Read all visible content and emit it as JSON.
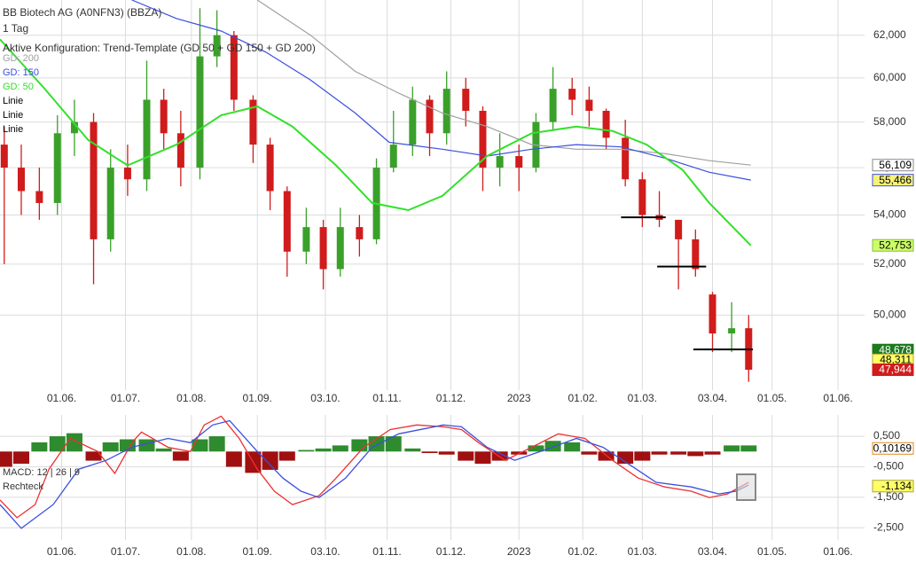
{
  "chart_data": [
    {
      "type": "candlestick",
      "title": "BB Biotech AG (A0NFN3) (BBZA)",
      "subtitle": "1 Tag",
      "annotation": "Aktive Konfiguration: Trend-Template (GD 50 + GD 150 + GD 200)",
      "up_color": "#3aa02a",
      "down_color": "#d01c1c",
      "x": [
        -27,
        -19,
        -10.5,
        -2,
        6,
        15,
        23,
        31,
        40,
        48,
        56,
        65,
        73,
        81,
        90,
        98,
        106,
        115,
        123,
        131,
        140,
        148,
        156,
        165,
        173,
        181,
        190,
        198,
        206,
        215,
        223,
        231,
        240,
        248,
        256,
        265,
        273,
        281,
        290,
        298,
        306,
        315,
        323
      ],
      "open": [
        57,
        56,
        55,
        54.5,
        57.5,
        58,
        53,
        56,
        55.5,
        59,
        57.5,
        56,
        61,
        62,
        59,
        57,
        55,
        52.5,
        53.5,
        51.8,
        53.5,
        53,
        56,
        57,
        59,
        57.5,
        59.5,
        58.5,
        56,
        56.5,
        56,
        58,
        59.5,
        59,
        58.5,
        57.3,
        55.5,
        54,
        53.8,
        53,
        50.8,
        49.3,
        49.5
      ],
      "high": [
        57.8,
        57,
        56,
        58.3,
        59,
        58.4,
        56.8,
        57,
        60.8,
        59.5,
        58.5,
        63.3,
        63.2,
        62.2,
        59.2,
        57.3,
        55.2,
        54.3,
        53.8,
        54.3,
        54,
        56.4,
        58.5,
        59.6,
        59.2,
        60.3,
        60,
        58.7,
        57.5,
        57,
        58.4,
        60.5,
        60,
        59.6,
        58.6,
        58.1,
        55.8,
        55,
        53.8,
        53.4,
        50.9,
        50.5,
        50
      ],
      "low": [
        52,
        54,
        53.8,
        54,
        56.5,
        51.2,
        52.5,
        54.8,
        55,
        56.8,
        55.2,
        55.5,
        60.5,
        58.5,
        56.2,
        54.2,
        51.5,
        52,
        51,
        51.5,
        52.3,
        52.8,
        55.8,
        56.5,
        56.5,
        57,
        57.8,
        55,
        55.2,
        55,
        55.8,
        57.6,
        58.3,
        57.8,
        56.8,
        55.2,
        53.5,
        53.5,
        51,
        51.5,
        48.6,
        48.6,
        47.5
      ],
      "close": [
        56,
        55,
        54.5,
        57.5,
        58,
        53,
        56,
        55.5,
        59,
        57.5,
        56,
        61,
        62,
        59,
        57,
        55,
        52.5,
        53.5,
        51.8,
        53.5,
        53,
        56,
        57,
        59,
        57.5,
        59.5,
        58.5,
        56,
        56.5,
        56,
        58,
        59.5,
        59,
        58.5,
        57.3,
        55.5,
        54,
        53.8,
        53,
        51.8,
        49.3,
        49.5,
        47.944
      ],
      "overlays": [
        {
          "name": "GD: 200",
          "color": "#a0a0a0",
          "x": [
            92,
            117,
            138,
            158.5,
            179,
            200,
            221,
            242,
            263,
            284,
            304.5,
            324
          ],
          "values": [
            63.7,
            62,
            60.3,
            59.3,
            58.4,
            57.8,
            57,
            56.8,
            56.8,
            56.6,
            56.3,
            56.109
          ]
        },
        {
          "name": "GD: 150",
          "color": "#3a4fe0",
          "x": [
            33,
            54,
            75,
            96,
            117,
            138,
            154,
            179,
            200,
            221,
            242,
            263,
            284,
            304.5,
            324
          ],
          "values": [
            63.7,
            62.8,
            62.2,
            61.2,
            59.9,
            58.4,
            57.1,
            56.8,
            56.5,
            56.8,
            57,
            56.9,
            56.4,
            55.8,
            55.466
          ]
        },
        {
          "name": "GD: 50",
          "color": "#33e02a",
          "x": [
            -29,
            -8,
            12.5,
            31,
            54,
            75,
            92,
            108.5,
            129,
            146,
            163,
            179,
            200,
            221,
            242,
            259,
            275,
            292,
            304.5,
            324
          ],
          "values": [
            61.8,
            59.5,
            57.2,
            56.1,
            57,
            58.3,
            58.7,
            57.8,
            56.1,
            54.5,
            54.2,
            54.8,
            56.5,
            57.5,
            57.8,
            57.6,
            57,
            55.9,
            54.5,
            52.753
          ]
        }
      ],
      "lines": [
        {
          "name": "Linie",
          "color": "#000000",
          "x": [
            263,
            284
          ],
          "value": 53.9
        },
        {
          "name": "Linie",
          "color": "#000000",
          "x": [
            280,
            303
          ],
          "value": 51.9
        },
        {
          "name": "Linie",
          "color": "#000000",
          "x": [
            297,
            325
          ],
          "value": 48.7
        }
      ],
      "price_labels": [
        {
          "value": 56.109,
          "label": "56,109",
          "color": "#ffffff",
          "text_color": "#000000",
          "border": "#888888"
        },
        {
          "value": 55.466,
          "label": "55,466",
          "color": "#f6f27a",
          "text_color": "#000000",
          "border": "#3a4fe0"
        },
        {
          "value": 52.753,
          "label": "52,753",
          "color": "#ccff66",
          "text_color": "#000000",
          "border": "#88bb44"
        },
        {
          "value": 48.678,
          "label": "48,678",
          "color": "#1d7a1d",
          "text_color": "#ffffff",
          "border": "#1d7a1d"
        },
        {
          "value": 48.311,
          "label": "48,311",
          "color": "#ffff66",
          "text_color": "#000000",
          "border": "#aaaa33"
        },
        {
          "value": 47.944,
          "label": "47,944",
          "color": "#d01c1c",
          "text_color": "#ffffff",
          "border": "#d01c1c"
        }
      ],
      "log": true,
      "grid": true,
      "xlim": [
        -29,
        377.5
      ],
      "ylim": [
        47.2,
        63.7
      ],
      "xticks": [
        {
          "value": 0,
          "label": "01.06."
        },
        {
          "value": 30,
          "label": "01.07."
        },
        {
          "value": 61,
          "label": "01.08."
        },
        {
          "value": 92,
          "label": "01.09."
        },
        {
          "value": 124,
          "label": "03.10."
        },
        {
          "value": 153,
          "label": "01.11."
        },
        {
          "value": 183,
          "label": "01.12."
        },
        {
          "value": 215,
          "label": "2023"
        },
        {
          "value": 245,
          "label": "01.02."
        },
        {
          "value": 273,
          "label": "01.03."
        },
        {
          "value": 306,
          "label": "03.04."
        },
        {
          "value": 334,
          "label": "01.05."
        },
        {
          "value": 365,
          "label": "01.06."
        }
      ],
      "yticks": [
        {
          "value": 50,
          "label": "50,000"
        },
        {
          "value": 52,
          "label": "52,000"
        },
        {
          "value": 54,
          "label": "54,000"
        },
        {
          "value": 56,
          "label": "56,000"
        },
        {
          "value": 58,
          "label": "58,000"
        },
        {
          "value": 60,
          "label": "60,000"
        },
        {
          "value": 62,
          "label": "62,000"
        }
      ]
    },
    {
      "type": "macd",
      "title": "MACD: 12 | 26 | 9",
      "annotation": "Rechteck",
      "x": [
        -27,
        -19,
        -10.5,
        -2,
        6,
        15,
        23,
        31,
        40,
        48,
        56,
        65,
        73,
        81,
        90,
        98,
        106,
        115,
        123,
        131,
        140,
        148,
        156,
        165,
        173,
        181,
        190,
        198,
        206,
        215,
        223,
        231,
        240,
        248,
        256,
        265,
        273,
        281,
        290,
        298,
        306,
        315,
        323
      ],
      "histogram": [
        -0.5,
        -0.4,
        0.3,
        0.5,
        0.6,
        -0.3,
        0.3,
        0.4,
        0.4,
        0.1,
        -0.3,
        0.4,
        0.5,
        -0.5,
        -0.7,
        -0.6,
        -0.3,
        0.05,
        0.1,
        0.2,
        0.4,
        0.5,
        0.5,
        0.1,
        -0.05,
        -0.1,
        -0.3,
        -0.4,
        -0.3,
        -0.1,
        0.2,
        0.35,
        0.3,
        -0.1,
        -0.3,
        -0.4,
        -0.3,
        -0.1,
        -0.1,
        -0.15,
        -0.1,
        0.2,
        0.2
      ],
      "up_color": "#2e8b2e",
      "down_color": "#a01010",
      "series": [
        {
          "color": "#ee3030",
          "x": [
            -29,
            -21,
            -12.5,
            -6,
            4,
            17,
            25,
            33,
            37.5,
            50,
            60.5,
            67,
            75,
            83.5,
            92,
            100,
            108.5,
            121,
            129,
            142,
            154.5,
            167,
            179.5,
            188,
            196,
            208.5,
            221,
            233.5,
            246,
            259,
            271,
            283.5,
            296,
            304.5,
            313,
            323
          ],
          "values": [
            -1.59,
            -2.17,
            -1.74,
            -0.58,
            0.43,
            0,
            -0.72,
            0.29,
            0.64,
            0.14,
            0,
            0.87,
            1.16,
            0.43,
            -0.58,
            -1.3,
            -1.74,
            -1.45,
            -0.87,
            0.14,
            0.72,
            0.87,
            0.81,
            0.72,
            0.29,
            -0.29,
            0.14,
            0.58,
            0.43,
            -0.29,
            -0.87,
            -1.16,
            -1.3,
            -1.51,
            -1.39,
            -1.01
          ]
        },
        {
          "color": "#3a4fe0",
          "x": [
            -29,
            -19,
            -4,
            8,
            21,
            33,
            50,
            60.5,
            71,
            79,
            92,
            104,
            112.5,
            121,
            133.5,
            146,
            158.5,
            179.5,
            188,
            200,
            213,
            225,
            242,
            254.5,
            267,
            279.5,
            296,
            309,
            317,
            323
          ],
          "values": [
            -1.74,
            -2.52,
            -1.74,
            -0.58,
            -0.29,
            0.14,
            0.43,
            0.29,
            0.87,
            1.01,
            0,
            -0.87,
            -1.3,
            -1.51,
            -0.87,
            0.14,
            0.58,
            0.87,
            0.81,
            0.14,
            -0.29,
            0,
            0.43,
            0.14,
            -0.43,
            -1.01,
            -1.16,
            -1.39,
            -1.3,
            -1.1
          ]
        }
      ],
      "value_labels": [
        {
          "value": 0.10169,
          "label": "0,10169",
          "color": "#ffffff",
          "text_color": "#000000",
          "border": "#e08a20"
        },
        {
          "value": -1.134,
          "label": "-1,134",
          "color": "#ffff66",
          "text_color": "#000000",
          "border": "#aaaa33"
        }
      ],
      "grid": true,
      "xlim": [
        -29,
        377.5
      ],
      "ylim": [
        -2.9,
        1.2
      ],
      "xticks": [
        {
          "value": 0,
          "label": "01.06."
        },
        {
          "value": 30,
          "label": "01.07."
        },
        {
          "value": 61,
          "label": "01.08."
        },
        {
          "value": 92,
          "label": "01.09."
        },
        {
          "value": 124,
          "label": "03.10."
        },
        {
          "value": 153,
          "label": "01.11."
        },
        {
          "value": 183,
          "label": "01.12."
        },
        {
          "value": 215,
          "label": "2023"
        },
        {
          "value": 245,
          "label": "01.02."
        },
        {
          "value": 273,
          "label": "01.03."
        },
        {
          "value": 306,
          "label": "03.04."
        },
        {
          "value": 334,
          "label": "01.05."
        },
        {
          "value": 365,
          "label": "01.06."
        }
      ],
      "yticks": [
        {
          "value": 0.5,
          "label": "0,500"
        },
        {
          "value": -0.5,
          "label": "-0,500"
        },
        {
          "value": -1.5,
          "label": "-1,500"
        },
        {
          "value": -2.5,
          "label": "-2,500"
        }
      ]
    }
  ]
}
